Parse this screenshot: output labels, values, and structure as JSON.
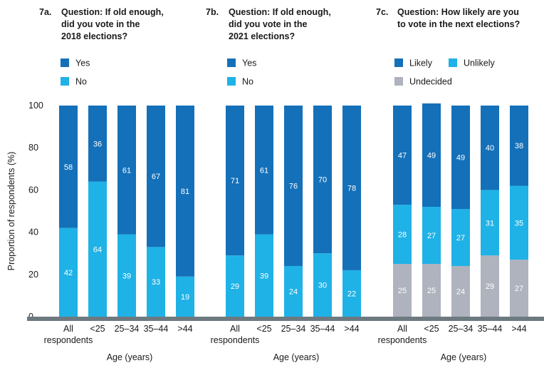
{
  "chart_data": {
    "y_axis": {
      "label": "Proportion of respondents (%)",
      "ticks": [
        "0",
        "20",
        "40",
        "60",
        "80",
        "100"
      ],
      "ylim": [
        0,
        100
      ]
    },
    "colors": {
      "dark_blue": "#1470B8",
      "light_blue": "#1EB2E6",
      "grey": "#AEB3BD",
      "baseline": "#6D7B80"
    },
    "panels": [
      {
        "type": "bar",
        "stacked": true,
        "number": "7a.",
        "question_lines": [
          "Question: If old enough,",
          "did you vote in the",
          "2018 elections?"
        ],
        "legend": [
          {
            "label": "Yes",
            "color": "#1470B8"
          },
          {
            "label": "No",
            "color": "#1EB2E6"
          }
        ],
        "categories": [
          [
            "All",
            "respondents"
          ],
          [
            "<25"
          ],
          [
            "25–34"
          ],
          [
            "35–44"
          ],
          [
            ">44"
          ]
        ],
        "xlabel": "Age (years)",
        "series": [
          {
            "name": "No",
            "color": "#1EB2E6",
            "values": [
              42,
              64,
              39,
              33,
              19
            ],
            "labels": [
              "42",
              "64",
              "39",
              "33",
              "19"
            ]
          },
          {
            "name": "Yes",
            "color": "#1470B8",
            "values": [
              58,
              36,
              61,
              67,
              81
            ],
            "labels": [
              "58",
              "36",
              "61",
              "67",
              "81"
            ]
          }
        ]
      },
      {
        "type": "bar",
        "stacked": true,
        "number": "7b.",
        "question_lines": [
          "Question: If old enough,",
          "did you vote in the",
          "2021 elections?"
        ],
        "legend": [
          {
            "label": "Yes",
            "color": "#1470B8"
          },
          {
            "label": "No",
            "color": "#1EB2E6"
          }
        ],
        "categories": [
          [
            "All",
            "respondents"
          ],
          [
            "<25"
          ],
          [
            "25–34"
          ],
          [
            "35–44"
          ],
          [
            ">44"
          ]
        ],
        "xlabel": "Age (years)",
        "series": [
          {
            "name": "No",
            "color": "#1EB2E6",
            "values": [
              29,
              39,
              24,
              30,
              22
            ],
            "labels": [
              "29",
              "39",
              "24",
              "30",
              "22"
            ]
          },
          {
            "name": "Yes",
            "color": "#1470B8",
            "values": [
              71,
              61,
              76,
              70,
              78
            ],
            "labels": [
              "71",
              "61",
              "76",
              "70",
              "78"
            ]
          }
        ]
      },
      {
        "type": "bar",
        "stacked": true,
        "number": "7c.",
        "question_lines": [
          "Question: How likely are you",
          "to vote in the next elections?"
        ],
        "legend": [
          {
            "label": "Likely",
            "color": "#1470B8"
          },
          {
            "label": "Unlikely",
            "color": "#1EB2E6"
          },
          {
            "label": "Undecided",
            "color": "#AEB3BD"
          }
        ],
        "categories": [
          [
            "All",
            "respondents"
          ],
          [
            "<25"
          ],
          [
            "25–34"
          ],
          [
            "35–44"
          ],
          [
            ">44"
          ]
        ],
        "xlabel": "Age (years)",
        "series": [
          {
            "name": "Undecided",
            "color": "#AEB3BD",
            "values": [
              25,
              25,
              24,
              29,
              27
            ],
            "labels": [
              "25",
              "25",
              "24",
              "29",
              "27"
            ]
          },
          {
            "name": "Unlikely",
            "color": "#1EB2E6",
            "values": [
              28,
              27,
              27,
              31,
              35
            ],
            "labels": [
              "28",
              "27",
              "27",
              "31",
              "35"
            ]
          },
          {
            "name": "Likely",
            "color": "#1470B8",
            "values": [
              47,
              49,
              49,
              40,
              38
            ],
            "labels": [
              "47",
              "49",
              "49",
              "40",
              "38"
            ]
          }
        ]
      }
    ]
  }
}
